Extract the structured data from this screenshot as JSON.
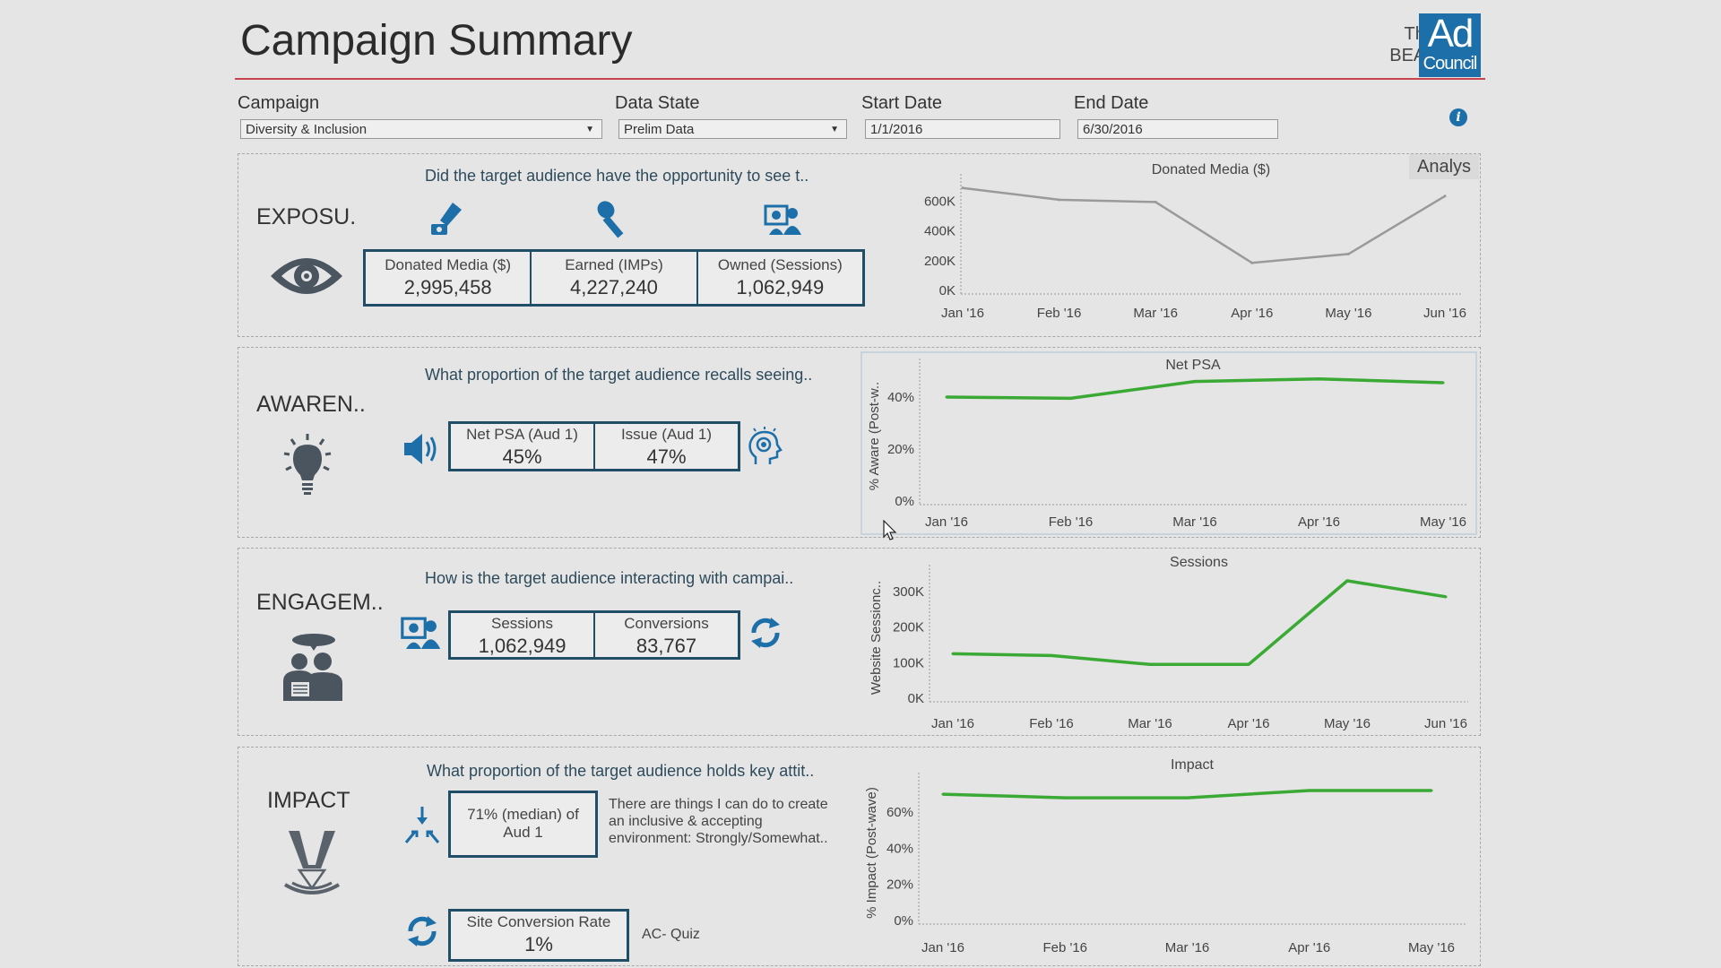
{
  "header": {
    "title": "Campaign Summary",
    "logo_the": "The",
    "logo_beat": "BEAT",
    "logo_ad": "Ad",
    "logo_council": "Council"
  },
  "filters": {
    "campaign": {
      "label": "Campaign",
      "value": "Diversity & Inclusion"
    },
    "data_state": {
      "label": "Data State",
      "value": "Prelim Data"
    },
    "start_date": {
      "label": "Start Date",
      "value": "1/1/2016"
    },
    "end_date": {
      "label": "End Date",
      "value": "6/30/2016"
    },
    "info_icon": "i"
  },
  "analys_button": "Analys",
  "exposure": {
    "label": "EXPOSU.",
    "question": "Did the target audience have the opportunity to see t..",
    "kpis": [
      {
        "label": "Donated Media ($)",
        "value": "2,995,458"
      },
      {
        "label": "Earned (IMPs)",
        "value": "4,227,240"
      },
      {
        "label": "Owned (Sessions)",
        "value": "1,062,949"
      }
    ]
  },
  "awareness": {
    "label": "AWAREN..",
    "question": "What proportion of the target audience recalls seeing..",
    "kpis": [
      {
        "label": "Net PSA (Aud 1)",
        "value": "45%"
      },
      {
        "label": "Issue (Aud 1)",
        "value": "47%"
      }
    ]
  },
  "engagement": {
    "label": "ENGAGEM..",
    "question": "How is the target audience interacting with campai..",
    "kpis": [
      {
        "label": "Sessions",
        "value": "1,062,949"
      },
      {
        "label": "Conversions",
        "value": "83,767"
      }
    ]
  },
  "impact": {
    "label": "IMPACT",
    "question": "What proportion of the target audience holds key attit..",
    "median_line1": "71% (median) of",
    "median_line2": "Aud 1",
    "statement_lines": [
      "There are things I can do to create",
      "an inclusive & accepting",
      "environment: Strongly/Somewhat.."
    ],
    "conversion_label": "Site Conversion Rate",
    "conversion_value": "1%",
    "quiz_label": "AC- Quiz"
  },
  "colors": {
    "accent_blue": "#1c6fa8",
    "kpi_border": "#1f4e66",
    "green_line": "#3aaa35",
    "gray_line": "#9a9a9a",
    "header_rule": "#c9444f"
  },
  "chart_data": [
    {
      "type": "line",
      "title": "Donated Media ($)",
      "ylabel": "",
      "categories": [
        "Jan '16",
        "Feb '16",
        "Mar '16",
        "Apr '16",
        "May '16",
        "Jun '16"
      ],
      "values": [
        690000,
        610000,
        595000,
        185000,
        245000,
        635000
      ],
      "ylim": [
        0,
        700000
      ],
      "yticks": [
        0,
        200000,
        400000,
        600000
      ],
      "ytick_labels": [
        "0K",
        "200K",
        "400K",
        "600K"
      ],
      "color": "#9a9a9a"
    },
    {
      "type": "line",
      "title": "Net PSA",
      "ylabel": "% Aware (Post-w..",
      "categories": [
        "Jan '16",
        "Feb '16",
        "Mar '16",
        "Apr '16",
        "May '16"
      ],
      "values": [
        40,
        39.5,
        46,
        47,
        45.5
      ],
      "ylim": [
        0,
        50
      ],
      "yticks": [
        0,
        20,
        40
      ],
      "ytick_labels": [
        "0%",
        "20%",
        "40%"
      ],
      "color": "#3aaa35"
    },
    {
      "type": "line",
      "title": "Sessions",
      "ylabel": "Website Sessionc..",
      "categories": [
        "Jan '16",
        "Feb '16",
        "Mar '16",
        "Apr '16",
        "May '16",
        "Jun '16"
      ],
      "values": [
        125000,
        120000,
        95000,
        95000,
        330000,
        285000
      ],
      "ylim": [
        0,
        340000
      ],
      "yticks": [
        0,
        100000,
        200000,
        300000
      ],
      "ytick_labels": [
        "0K",
        "100K",
        "200K",
        "300K"
      ],
      "color": "#3aaa35"
    },
    {
      "type": "line",
      "title": "Impact",
      "ylabel": "% Impact (Post-wave)",
      "categories": [
        "Jan '16",
        "Feb '16",
        "Mar '16",
        "Apr '16",
        "May '16"
      ],
      "values": [
        70,
        68,
        68,
        72,
        72
      ],
      "ylim": [
        0,
        75
      ],
      "yticks": [
        0,
        20,
        40,
        60
      ],
      "ytick_labels": [
        "0%",
        "20%",
        "40%",
        "60%"
      ],
      "color": "#3aaa35"
    }
  ]
}
